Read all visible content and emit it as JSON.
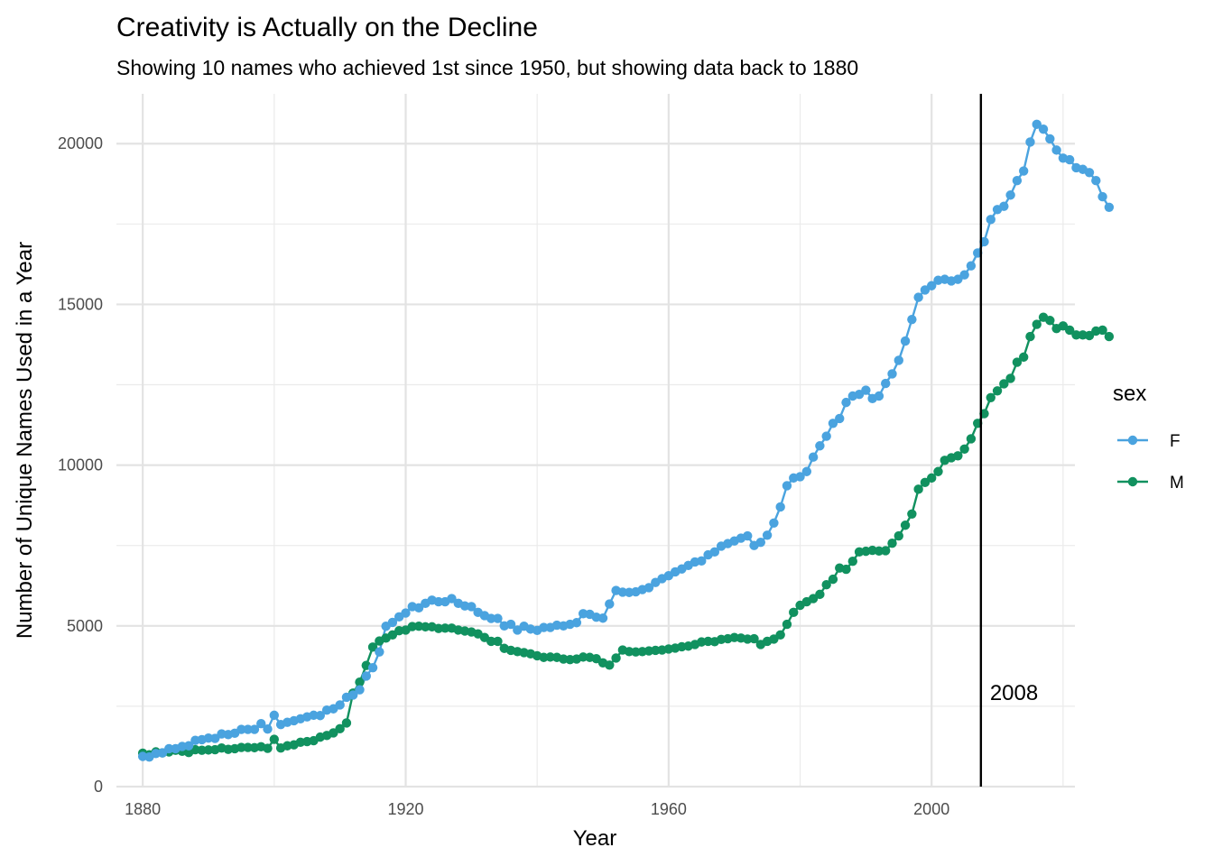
{
  "chart_data": {
    "type": "line",
    "title": "Creativity is Actually on the Decline",
    "subtitle": "Showing 10 names who achieved 1st since 1950, but showing data back to 1880",
    "xlabel": "Year",
    "ylabel": "Number of Unique Names Used in a Year",
    "xlim": [
      1876,
      2021.8
    ],
    "ylim": [
      0,
      21550
    ],
    "x_ticks": [
      1880,
      1920,
      1960,
      2000
    ],
    "y_ticks": [
      0,
      5000,
      10000,
      15000,
      20000
    ],
    "x_tick_labels": [
      "1880",
      "1920",
      "1960",
      "2000"
    ],
    "y_tick_labels": [
      "0",
      "5000",
      "10000",
      "15000",
      "20000"
    ],
    "grid": true,
    "legend": {
      "title": "sex",
      "position": "right"
    },
    "markers": true,
    "x_start": 1880,
    "series": [
      {
        "name": "F",
        "color": "#4aa3df",
        "values": [
          940,
          920,
          1030,
          1050,
          1180,
          1180,
          1250,
          1270,
          1440,
          1460,
          1510,
          1500,
          1640,
          1620,
          1660,
          1780,
          1780,
          1780,
          1960,
          1790,
          2220,
          1930,
          2000,
          2050,
          2110,
          2170,
          2220,
          2210,
          2380,
          2420,
          2540,
          2780,
          2850,
          3010,
          3440,
          3700,
          4190,
          4990,
          5110,
          5280,
          5400,
          5600,
          5560,
          5700,
          5800,
          5750,
          5750,
          5850,
          5700,
          5620,
          5600,
          5420,
          5320,
          5230,
          5230,
          5000,
          5050,
          4870,
          4990,
          4900,
          4860,
          4950,
          4950,
          5020,
          5000,
          5050,
          5100,
          5380,
          5360,
          5270,
          5240,
          5680,
          6100,
          6050,
          6040,
          6060,
          6130,
          6190,
          6350,
          6470,
          6560,
          6680,
          6770,
          6880,
          6990,
          7020,
          7210,
          7300,
          7480,
          7560,
          7640,
          7730,
          7800,
          7500,
          7600,
          7820,
          8200,
          8700,
          9360,
          9600,
          9640,
          9800,
          10250,
          10600,
          10900,
          11300,
          11450,
          11950,
          12150,
          12200,
          12330,
          12070,
          12150,
          12540,
          12840,
          13260,
          13860,
          14530,
          15220,
          15450,
          15580,
          15750,
          15780,
          15730,
          15780,
          15920,
          16200,
          16600,
          16950,
          17640,
          17950,
          18050,
          18400,
          18850,
          19150,
          20050,
          20600,
          20450,
          20150,
          19800,
          19550,
          19500,
          19250,
          19200,
          19100,
          18850,
          18350,
          18020
        ]
      },
      {
        "name": "M",
        "color": "#11915f",
        "values": [
          1040,
          990,
          1080,
          1050,
          1080,
          1130,
          1100,
          1060,
          1150,
          1130,
          1140,
          1150,
          1200,
          1160,
          1180,
          1220,
          1220,
          1210,
          1240,
          1190,
          1470,
          1200,
          1270,
          1300,
          1380,
          1400,
          1430,
          1540,
          1590,
          1670,
          1800,
          1980,
          2910,
          3250,
          3770,
          4340,
          4530,
          4620,
          4720,
          4850,
          4870,
          4980,
          4990,
          4970,
          4970,
          4920,
          4930,
          4930,
          4870,
          4840,
          4810,
          4750,
          4640,
          4520,
          4520,
          4300,
          4240,
          4200,
          4170,
          4130,
          4070,
          4020,
          4030,
          4020,
          3970,
          3950,
          3970,
          4030,
          4020,
          3980,
          3850,
          3780,
          4000,
          4250,
          4200,
          4190,
          4200,
          4220,
          4240,
          4250,
          4280,
          4310,
          4350,
          4370,
          4420,
          4500,
          4520,
          4510,
          4580,
          4600,
          4640,
          4620,
          4590,
          4600,
          4420,
          4520,
          4590,
          4720,
          5050,
          5420,
          5640,
          5750,
          5850,
          5980,
          6280,
          6450,
          6800,
          6760,
          7010,
          7300,
          7320,
          7350,
          7330,
          7340,
          7570,
          7800,
          8130,
          8480,
          9250,
          9460,
          9600,
          9800,
          10150,
          10230,
          10290,
          10500,
          10820,
          11300,
          11600,
          12100,
          12310,
          12530,
          12700,
          13200,
          13360,
          14000,
          14380,
          14600,
          14500,
          14250,
          14330,
          14200,
          14050,
          14050,
          14030,
          14170,
          14200,
          14000
        ]
      }
    ],
    "vline": {
      "x": 2007.5,
      "label": "2008",
      "label_y": 2940
    }
  }
}
